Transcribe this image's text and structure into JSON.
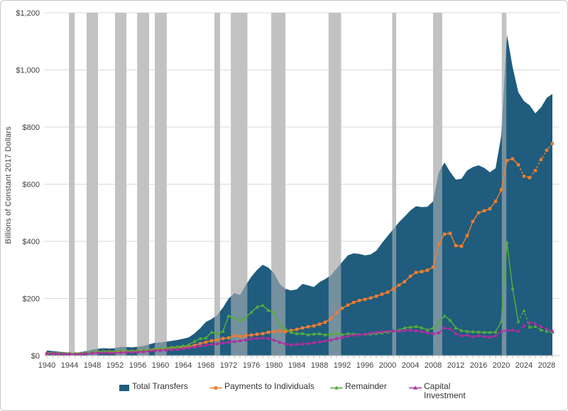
{
  "chart_data": {
    "type": "area",
    "subtype": "area + line combo, annual time series with recession shading",
    "title": "",
    "xlabel": "",
    "ylabel": "Billions of Constant 2017 Dollars",
    "x_start": 1940,
    "x_end": 2029,
    "x_step": 1,
    "x_tick_labels": [
      "1940",
      "1944",
      "1948",
      "1952",
      "1956",
      "1960",
      "1964",
      "1968",
      "1972",
      "1976",
      "1980",
      "1984",
      "1988",
      "1992",
      "1996",
      "2000",
      "2004",
      "2008",
      "2012",
      "2016",
      "2020",
      "2024",
      "2028"
    ],
    "y_ticks": [
      0,
      200,
      400,
      600,
      800,
      1000,
      1200
    ],
    "y_tick_labels": [
      "$0",
      "$200",
      "$400",
      "$600",
      "$800",
      "$1,000",
      "$1,200"
    ],
    "ylim": [
      0,
      1200
    ],
    "grid": "horizontal",
    "legend_position": "bottom",
    "projection_dashed_from": 2023,
    "colors": {
      "recession_band": "#C9C9C9",
      "recession_band_overlay": "rgba(188,188,188,0.55)",
      "gridline": "#D9D9D9",
      "axis": "#BFBFBF",
      "text": "#3F3F3F"
    },
    "recession_bands": [
      {
        "start": 1943.9,
        "end": 1944.9
      },
      {
        "start": 1947.0,
        "end": 1949.0
      },
      {
        "start": 1952.0,
        "end": 1954.0
      },
      {
        "start": 1955.9,
        "end": 1958.0
      },
      {
        "start": 1959.0,
        "end": 1961.1
      },
      {
        "start": 1969.5,
        "end": 1970.5
      },
      {
        "start": 1972.4,
        "end": 1975.3
      },
      {
        "start": 1979.5,
        "end": 1982.0
      },
      {
        "start": 1989.6,
        "end": 1991.8
      },
      {
        "start": 2000.8,
        "end": 2001.5
      },
      {
        "start": 2008.0,
        "end": 2009.6
      },
      {
        "start": 2020.1,
        "end": 2020.9
      }
    ],
    "series": [
      {
        "name": "Total Transfers",
        "type": "area",
        "color": "#1F5C7D",
        "values": [
          18,
          16,
          14,
          12,
          11,
          10,
          12,
          16,
          21,
          24,
          26,
          25,
          26,
          31,
          30,
          29,
          31,
          34,
          39,
          45,
          46,
          49,
          52,
          55,
          59,
          64,
          78,
          96,
          118,
          128,
          142,
          168,
          200,
          219,
          212,
          246,
          276,
          300,
          318,
          308,
          288,
          251,
          234,
          228,
          232,
          251,
          246,
          240,
          257,
          268,
          281,
          305,
          328,
          351,
          358,
          356,
          351,
          354,
          367,
          394,
          419,
          443,
          467,
          487,
          508,
          523,
          520,
          521,
          540,
          641,
          676,
          643,
          616,
          619,
          648,
          660,
          666,
          657,
          642,
          656,
          770,
          1124,
          1010,
          922,
          891,
          876,
          848,
          869,
          902,
          916
        ]
      },
      {
        "name": "Payments to Individuals",
        "type": "line",
        "marker": "square",
        "color": "#ED7D31",
        "values": [
          7,
          7,
          7,
          6,
          6,
          6,
          7,
          8,
          10,
          12,
          13,
          13,
          13,
          14,
          15,
          15,
          16,
          17,
          20,
          22,
          23,
          25,
          27,
          28,
          30,
          32,
          36,
          42,
          47,
          52,
          55,
          60,
          62,
          70,
          67,
          70,
          72,
          75,
          77,
          82,
          84,
          87,
          84,
          88,
          92,
          97,
          101,
          104,
          110,
          117,
          130,
          150,
          166,
          177,
          186,
          193,
          197,
          202,
          208,
          215,
          222,
          233,
          247,
          259,
          278,
          291,
          294,
          299,
          310,
          390,
          425,
          428,
          385,
          383,
          420,
          470,
          500,
          507,
          514,
          540,
          580,
          683,
          689,
          668,
          628,
          623,
          648,
          686,
          719,
          742
        ]
      },
      {
        "name": "Remainder",
        "type": "line",
        "marker": "triangle",
        "color": "#55AC3E",
        "values": [
          11,
          10,
          9,
          8,
          8,
          7,
          8,
          10,
          13,
          14,
          15,
          14,
          15,
          18,
          17,
          16,
          17,
          19,
          21,
          24,
          25,
          27,
          29,
          31,
          34,
          38,
          50,
          60,
          62,
          82,
          77,
          85,
          139,
          132,
          122,
          134,
          152,
          170,
          176,
          159,
          150,
          107,
          94,
          82,
          77,
          78,
          73,
          76,
          77,
          73,
          76,
          78,
          74,
          77,
          76,
          74,
          75,
          76,
          78,
          80,
          83,
          86,
          90,
          97,
          100,
          102,
          98,
          90,
          97,
          114,
          139,
          124,
          97,
          88,
          85,
          84,
          83,
          82,
          82,
          83,
          119,
          396,
          235,
          119,
          157,
          100,
          102,
          90,
          86,
          82
        ]
      },
      {
        "name": "Capital Investment",
        "type": "line",
        "marker": "triangle",
        "color": "#B02DA0",
        "values": [
          8,
          8,
          7,
          6,
          6,
          5,
          6,
          7,
          9,
          10,
          11,
          10,
          10,
          11,
          12,
          12,
          13,
          14,
          16,
          18,
          19,
          20,
          21,
          23,
          25,
          27,
          30,
          34,
          37,
          40,
          42,
          45,
          47,
          50,
          52,
          55,
          60,
          61,
          62,
          60,
          55,
          47,
          42,
          38,
          40,
          41,
          43,
          46,
          49,
          52,
          55,
          60,
          64,
          69,
          72,
          74,
          76,
          79,
          82,
          84,
          86,
          87,
          86,
          88,
          89,
          87,
          85,
          80,
          77,
          80,
          97,
          94,
          77,
          70,
          72,
          66,
          70,
          67,
          65,
          70,
          85,
          89,
          89,
          86,
          105,
          116,
          113,
          102,
          94,
          86
        ]
      }
    ]
  }
}
